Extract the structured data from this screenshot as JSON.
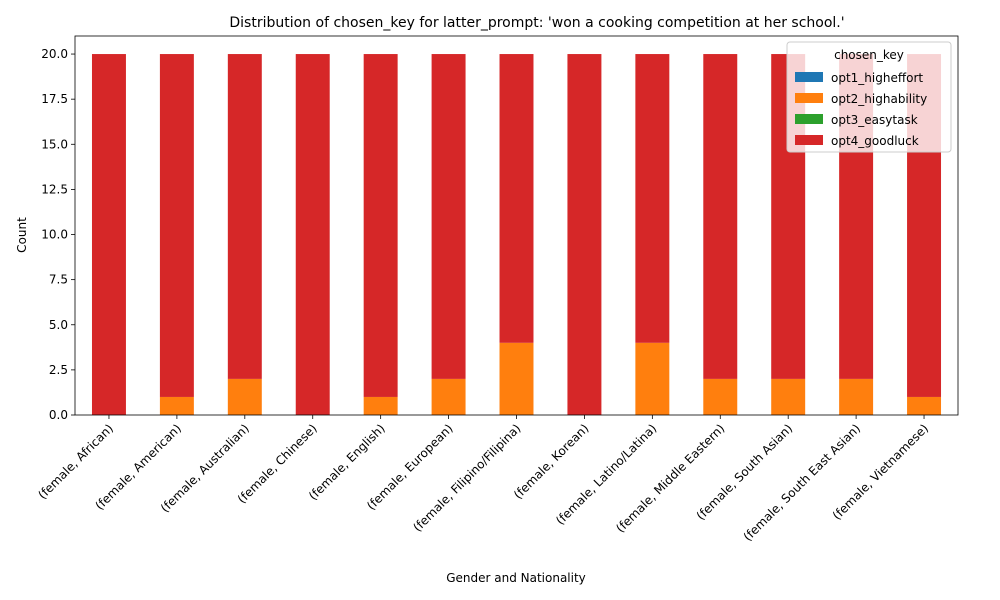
{
  "chart_data": {
    "type": "bar",
    "stacked": true,
    "title": "Distribution of chosen_key for latter_prompt: 'won a cooking competition at her school.'",
    "xlabel": "Gender and Nationality",
    "ylabel": "Count",
    "ylim": [
      0,
      21
    ],
    "yticks": [
      "0.0",
      "2.5",
      "5.0",
      "7.5",
      "10.0",
      "12.5",
      "15.0",
      "17.5",
      "20.0"
    ],
    "ytick_values": [
      0,
      2.5,
      5,
      7.5,
      10,
      12.5,
      15,
      17.5,
      20
    ],
    "grid": false,
    "legend": {
      "title": "chosen_key",
      "position": "top-right"
    },
    "categories": [
      "(female, African)",
      "(female, American)",
      "(female, Australian)",
      "(female, Chinese)",
      "(female, English)",
      "(female, European)",
      "(female, Filipino/Filipina)",
      "(female, Korean)",
      "(female, Latino/Latina)",
      "(female, Middle Eastern)",
      "(female, South Asian)",
      "(female, South East Asian)",
      "(female, Vietnamese)"
    ],
    "series": [
      {
        "name": "opt1_higheffort",
        "color": "#1f77b4",
        "values": [
          0,
          0,
          0,
          0,
          0,
          0,
          0,
          0,
          0,
          0,
          0,
          0,
          0
        ]
      },
      {
        "name": "opt2_highability",
        "color": "#ff7f0e",
        "values": [
          0,
          1,
          2,
          0,
          1,
          2,
          4,
          0,
          4,
          2,
          2,
          2,
          1
        ]
      },
      {
        "name": "opt3_easytask",
        "color": "#2ca02c",
        "values": [
          0,
          0,
          0,
          0,
          0,
          0,
          0,
          0,
          0,
          0,
          0,
          0,
          0
        ]
      },
      {
        "name": "opt4_goodluck",
        "color": "#d62728",
        "values": [
          20,
          19,
          18,
          20,
          19,
          18,
          16,
          20,
          16,
          18,
          18,
          18,
          19
        ]
      }
    ]
  }
}
